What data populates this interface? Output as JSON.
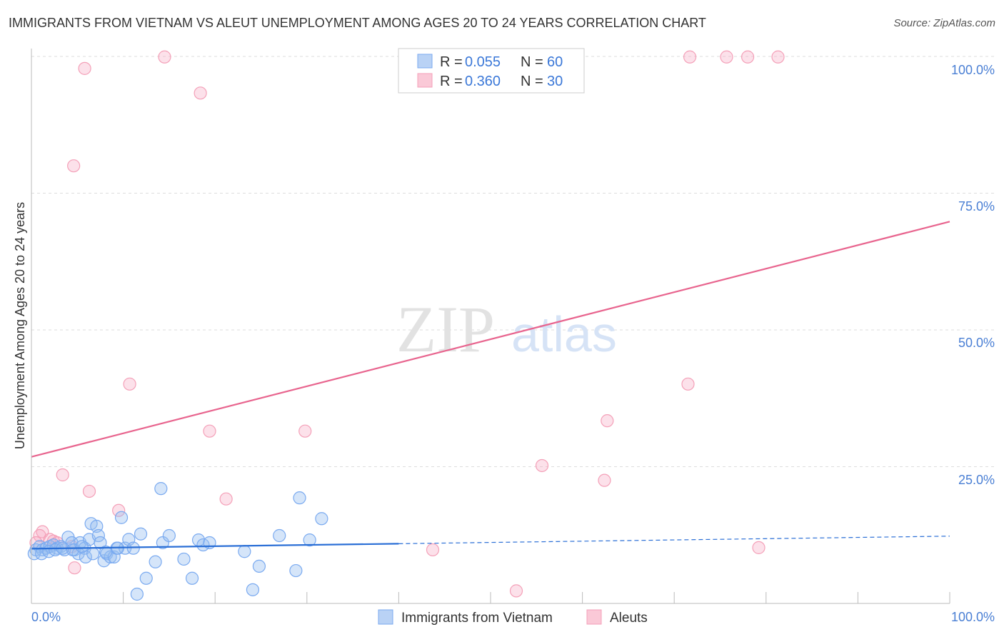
{
  "title": "IMMIGRANTS FROM VIETNAM VS ALEUT UNEMPLOYMENT AMONG AGES 20 TO 24 YEARS CORRELATION CHART",
  "source": "Source: ZipAtlas.com",
  "watermark": "ZIPatlas",
  "chart_data": {
    "type": "scatter",
    "title": "IMMIGRANTS FROM VIETNAM VS ALEUT UNEMPLOYMENT AMONG AGES 20 TO 24 YEARS CORRELATION CHART",
    "xlabel": "",
    "ylabel": "Unemployment Among Ages 20 to 24 years",
    "xlim": [
      0,
      100
    ],
    "ylim": [
      0,
      100
    ],
    "x_tick_labels": [
      "0.0%",
      "100.0%"
    ],
    "y_ticks": [
      25,
      50,
      75,
      100
    ],
    "y_tick_labels": [
      "25.0%",
      "50.0%",
      "75.0%",
      "100.0%"
    ],
    "grid": true,
    "legend_top": [
      {
        "r_label": "R = ",
        "r": "0.055",
        "n_label": "N = ",
        "n": "60"
      },
      {
        "r_label": "R = ",
        "r": "0.360",
        "n_label": "N = ",
        "n": "30"
      }
    ],
    "series": [
      {
        "name": "Immigrants from Vietnam",
        "color": "#7aaaf0",
        "line_color": "#2b6fd6",
        "trend": {
          "x0": 0,
          "y0": 10.0,
          "x1": 100,
          "y1": 12.3,
          "solid_until": 40
        },
        "points": [
          [
            0.5,
            9.8
          ],
          [
            0.9,
            10.4
          ],
          [
            1.2,
            9.8
          ],
          [
            1.6,
            10.1
          ],
          [
            2.0,
            10.4
          ],
          [
            2.4,
            10.7
          ],
          [
            2.8,
            10.1
          ],
          [
            3.2,
            10.4
          ],
          [
            3.6,
            9.8
          ],
          [
            4.0,
            12.1
          ],
          [
            4.4,
            11.1
          ],
          [
            4.7,
            9.8
          ],
          [
            5.1,
            9.1
          ],
          [
            5.3,
            11.1
          ],
          [
            5.8,
            10.1
          ],
          [
            5.9,
            8.5
          ],
          [
            6.3,
            11.7
          ],
          [
            6.5,
            14.6
          ],
          [
            7.1,
            14.1
          ],
          [
            7.3,
            12.4
          ],
          [
            7.5,
            11.1
          ],
          [
            7.9,
            7.8
          ],
          [
            8.2,
            9.1
          ],
          [
            8.6,
            8.5
          ],
          [
            9.0,
            8.5
          ],
          [
            9.3,
            10.1
          ],
          [
            9.8,
            15.7
          ],
          [
            10.2,
            10.1
          ],
          [
            10.6,
            11.7
          ],
          [
            11.1,
            10.1
          ],
          [
            11.5,
            1.7
          ],
          [
            11.9,
            12.7
          ],
          [
            12.5,
            4.6
          ],
          [
            13.5,
            7.6
          ],
          [
            14.1,
            21.0
          ],
          [
            14.3,
            11.1
          ],
          [
            15.0,
            12.4
          ],
          [
            16.6,
            8.1
          ],
          [
            17.5,
            4.6
          ],
          [
            18.2,
            11.6
          ],
          [
            18.7,
            10.7
          ],
          [
            19.4,
            11.1
          ],
          [
            23.2,
            9.5
          ],
          [
            24.1,
            2.5
          ],
          [
            24.8,
            6.8
          ],
          [
            27.0,
            12.4
          ],
          [
            28.8,
            6.0
          ],
          [
            29.2,
            19.3
          ],
          [
            30.3,
            11.6
          ],
          [
            31.6,
            15.5
          ],
          [
            0.3,
            9.1
          ],
          [
            1.1,
            9.1
          ],
          [
            1.9,
            9.5
          ],
          [
            2.6,
            9.8
          ],
          [
            3.4,
            10.1
          ],
          [
            4.5,
            9.8
          ],
          [
            5.5,
            10.4
          ],
          [
            8.1,
            9.4
          ],
          [
            9.4,
            10.1
          ],
          [
            6.7,
            9.1
          ]
        ]
      },
      {
        "name": "Aleuts",
        "color": "#f4a0b8",
        "line_color": "#e8648e",
        "trend": {
          "x0": 0,
          "y0": 26.8,
          "x1": 100,
          "y1": 69.8,
          "solid_until": 100
        },
        "points": [
          [
            14.5,
            99.9
          ],
          [
            5.8,
            97.8
          ],
          [
            18.4,
            93.3
          ],
          [
            4.6,
            80.0
          ],
          [
            71.7,
            99.9
          ],
          [
            75.7,
            99.9
          ],
          [
            78.0,
            99.9
          ],
          [
            81.3,
            99.9
          ],
          [
            10.7,
            40.1
          ],
          [
            71.5,
            40.1
          ],
          [
            19.4,
            31.5
          ],
          [
            29.8,
            31.5
          ],
          [
            62.7,
            33.4
          ],
          [
            3.4,
            23.5
          ],
          [
            6.3,
            20.5
          ],
          [
            55.6,
            25.2
          ],
          [
            62.4,
            22.5
          ],
          [
            21.2,
            19.1
          ],
          [
            9.5,
            17.0
          ],
          [
            43.7,
            9.8
          ],
          [
            79.2,
            10.2
          ],
          [
            52.8,
            2.3
          ],
          [
            1.2,
            13.1
          ],
          [
            0.9,
            12.4
          ],
          [
            2.0,
            11.7
          ],
          [
            2.4,
            11.4
          ],
          [
            4.4,
            10.4
          ],
          [
            4.7,
            6.5
          ],
          [
            0.5,
            11.1
          ],
          [
            2.8,
            11.1
          ]
        ]
      }
    ]
  }
}
